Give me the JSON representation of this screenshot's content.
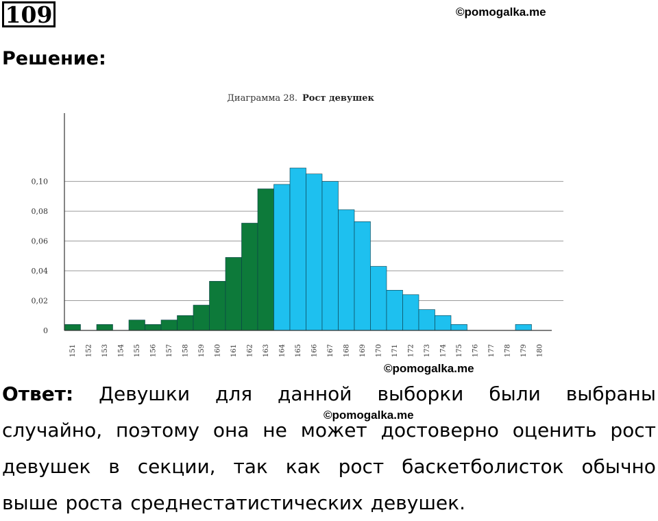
{
  "problem_number": "109",
  "watermark": "©pomogalka.me",
  "heading": "Решение:",
  "answer": {
    "label": "Ответ:",
    "lines": [
      [
        "Девушки",
        "для",
        "данной",
        "выборки",
        "были",
        "выбраны"
      ],
      [
        "случайно,",
        "поэтому",
        "она",
        "не",
        "может",
        "достоверно",
        "оценить",
        "рост"
      ],
      [
        "девушек",
        "в",
        "секции,",
        "так",
        "как",
        "рост",
        "баскетболисток",
        "обычно"
      ],
      [
        "выше",
        "роста",
        "среднестатистических",
        "девушек."
      ]
    ]
  },
  "chart_data": {
    "type": "bar",
    "title_prefix": "Диаграмма 28.",
    "title_main": "Рост девушек",
    "categories": [
      "151",
      "152",
      "153",
      "154",
      "155",
      "156",
      "157",
      "158",
      "159",
      "160",
      "161",
      "162",
      "163",
      "164",
      "165",
      "166",
      "167",
      "168",
      "169",
      "170",
      "171",
      "172",
      "173",
      "174",
      "175",
      "176",
      "177",
      "178",
      "179",
      "180"
    ],
    "values": [
      0.004,
      0,
      0.004,
      0,
      0.007,
      0.004,
      0.007,
      0.01,
      0.017,
      0.033,
      0.049,
      0.072,
      0.095,
      0.098,
      0.109,
      0.105,
      0.1,
      0.081,
      0.073,
      0.043,
      0.027,
      0.024,
      0.014,
      0.01,
      0.004,
      0,
      0,
      0,
      0.004,
      0
    ],
    "y_tick_labels": [
      "0",
      "0,02",
      "0,04",
      "0,06",
      "0,08",
      "0,10"
    ],
    "y_ticks": [
      0,
      0.02,
      0.04,
      0.06,
      0.08,
      0.1
    ],
    "ylim": [
      0,
      0.115
    ],
    "grid": true,
    "colors": {
      "low": "#0d7a3a",
      "high": "#1ec0ef",
      "grid": "#9a9a9a",
      "axis": "#333333"
    },
    "split_category": "164"
  }
}
